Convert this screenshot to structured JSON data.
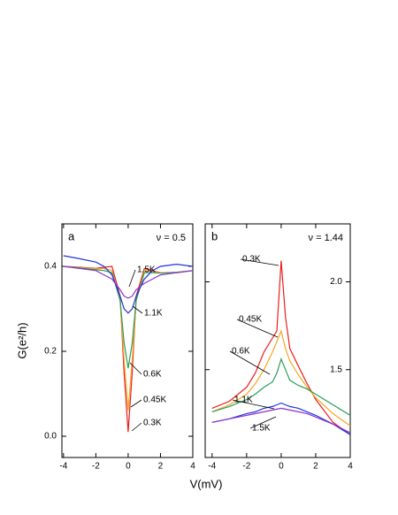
{
  "chart_data": [
    {
      "type": "line",
      "panel": "a",
      "annotation": "ν = 0.5",
      "ylabel": "G(e²/h)",
      "xlabel": "V(mV)",
      "xlim": [
        -4.1,
        4
      ],
      "xticks": [
        -4,
        -2,
        0,
        2,
        4
      ],
      "ylim": [
        -0.05,
        0.5
      ],
      "yticks": [
        {
          "value": 0,
          "label": "0.0"
        },
        0.2,
        0.4
      ],
      "x": [
        -4,
        -3,
        -2,
        -1.5,
        -1,
        -0.5,
        -0.25,
        0,
        0.25,
        0.5,
        1,
        1.5,
        2,
        3,
        4
      ],
      "series": [
        {
          "name": "0.3K",
          "color": "#e8201c",
          "values": [
            0.4,
            0.398,
            0.395,
            0.398,
            0.4,
            0.33,
            0.15,
            0.01,
            0.15,
            0.33,
            0.395,
            0.39,
            0.385,
            0.385,
            0.39
          ]
        },
        {
          "name": "0.45K",
          "color": "#f5a623",
          "values": [
            0.4,
            0.397,
            0.394,
            0.395,
            0.39,
            0.32,
            0.18,
            0.06,
            0.18,
            0.32,
            0.39,
            0.388,
            0.385,
            0.386,
            0.39
          ]
        },
        {
          "name": "0.6K",
          "color": "#2a9d5a",
          "values": [
            0.4,
            0.396,
            0.392,
            0.39,
            0.385,
            0.32,
            0.22,
            0.16,
            0.22,
            0.32,
            0.385,
            0.385,
            0.384,
            0.386,
            0.39
          ]
        },
        {
          "name": "1.1K",
          "color": "#2233dd",
          "values": [
            0.425,
            0.418,
            0.41,
            0.4,
            0.38,
            0.33,
            0.3,
            0.29,
            0.3,
            0.33,
            0.37,
            0.39,
            0.4,
            0.405,
            0.4
          ]
        },
        {
          "name": "1.5K",
          "color": "#8833cc",
          "values": [
            0.4,
            0.395,
            0.39,
            0.38,
            0.37,
            0.345,
            0.33,
            0.325,
            0.33,
            0.345,
            0.36,
            0.37,
            0.38,
            0.385,
            0.39
          ]
        }
      ]
    },
    {
      "type": "line",
      "panel": "b",
      "annotation": "ν = 1.44",
      "xlim": [
        -4.4,
        4
      ],
      "xticks": [
        -4,
        -2,
        0,
        2,
        4
      ],
      "ylim": [
        1.0,
        2.33
      ],
      "yticks": [
        1.5,
        {
          "value": 2,
          "label": "2.0"
        }
      ],
      "x": [
        -4,
        -3,
        -2,
        -1.5,
        -1,
        -0.5,
        -0.25,
        0,
        0.25,
        0.5,
        1,
        1.5,
        2,
        3,
        4
      ],
      "series": [
        {
          "name": "0.3K",
          "color": "#e8201c",
          "values": [
            1.28,
            1.32,
            1.4,
            1.48,
            1.6,
            1.68,
            1.72,
            2.12,
            1.8,
            1.62,
            1.52,
            1.42,
            1.33,
            1.2,
            1.13
          ]
        },
        {
          "name": "0.45K",
          "color": "#f5a623",
          "values": [
            1.26,
            1.3,
            1.36,
            1.42,
            1.5,
            1.6,
            1.66,
            1.72,
            1.62,
            1.55,
            1.47,
            1.4,
            1.34,
            1.25,
            1.18
          ]
        },
        {
          "name": "0.6K",
          "color": "#2a9d5a",
          "values": [
            1.26,
            1.29,
            1.33,
            1.36,
            1.4,
            1.43,
            1.48,
            1.56,
            1.5,
            1.44,
            1.41,
            1.39,
            1.36,
            1.3,
            1.24
          ]
        },
        {
          "name": "1.1K",
          "color": "#2233dd",
          "values": [
            1.2,
            1.22,
            1.25,
            1.26,
            1.28,
            1.29,
            1.3,
            1.31,
            1.3,
            1.29,
            1.28,
            1.26,
            1.24,
            1.19,
            1.13
          ]
        },
        {
          "name": "1.5K",
          "color": "#8833cc",
          "values": [
            1.2,
            1.22,
            1.24,
            1.25,
            1.26,
            1.27,
            1.275,
            1.28,
            1.275,
            1.27,
            1.26,
            1.25,
            1.23,
            1.19,
            1.14
          ]
        }
      ]
    }
  ]
}
